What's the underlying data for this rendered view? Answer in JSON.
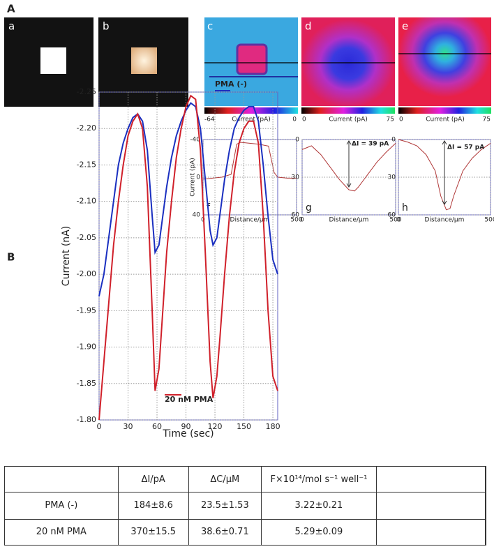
{
  "panels": {
    "a": "A",
    "b": "B"
  },
  "images": [
    {
      "label": "a"
    },
    {
      "label": "b"
    },
    {
      "label": "c"
    },
    {
      "label": "d"
    },
    {
      "label": "e"
    }
  ],
  "colorbars": [
    {
      "min": "-64",
      "title": "Current (pA)",
      "max": "0"
    },
    {
      "min": "0",
      "title": "Current (pA)",
      "max": "75"
    },
    {
      "min": "0",
      "title": "Current (pA)",
      "max": "75"
    }
  ],
  "chart_data": [
    {
      "type": "line",
      "label": "f",
      "x_label": "Distance/μm",
      "y_label": "Current (pA)",
      "xlim": [
        0,
        500
      ],
      "xticks": [
        0,
        500
      ],
      "ylim": [
        40,
        -40
      ],
      "yticks": [
        -40,
        0,
        40
      ],
      "grid": true,
      "x": [
        0,
        50,
        100,
        150,
        180,
        200,
        250,
        300,
        350,
        380,
        400,
        450,
        500
      ],
      "series": [
        {
          "color": "#b03838",
          "values": [
            2,
            1,
            0,
            -3,
            -35,
            -37,
            -36,
            -35,
            -33,
            -5,
            0,
            1,
            1
          ]
        }
      ]
    },
    {
      "type": "line",
      "label": "g",
      "x_label": "Distance/μm",
      "annotation": "ΔI = 39 pA",
      "xlim": [
        0,
        500
      ],
      "xticks": [
        0,
        500
      ],
      "ylim": [
        60,
        0
      ],
      "yticks": [
        0,
        30,
        60
      ],
      "grid": true,
      "x": [
        0,
        50,
        100,
        150,
        200,
        250,
        280,
        300,
        350,
        400,
        450,
        500
      ],
      "series": [
        {
          "color": "#b03838",
          "values": [
            8,
            5,
            12,
            22,
            32,
            40,
            41,
            38,
            28,
            18,
            10,
            3
          ]
        }
      ]
    },
    {
      "type": "line",
      "label": "h",
      "x_label": "Distance/μm",
      "annotation": "ΔI = 57 pA",
      "xlim": [
        0,
        500
      ],
      "xticks": [
        0,
        500
      ],
      "ylim": [
        60,
        0
      ],
      "yticks": [
        0,
        30,
        60
      ],
      "grid": true,
      "x": [
        0,
        50,
        100,
        150,
        200,
        230,
        260,
        280,
        300,
        350,
        400,
        450,
        500
      ],
      "series": [
        {
          "color": "#b03838",
          "values": [
            0,
            2,
            5,
            12,
            25,
            45,
            56,
            55,
            45,
            25,
            15,
            8,
            3
          ]
        }
      ]
    },
    {
      "type": "line",
      "x_label": "Time (sec)",
      "y_label": "Current (nA)",
      "xlim": [
        0,
        185
      ],
      "xticks": [
        0,
        30,
        60,
        90,
        120,
        150,
        180
      ],
      "ylim": [
        -1.8,
        -2.25
      ],
      "yticks": [
        -2.25,
        {
          "value": -2.2,
          "label": "-2.20"
        },
        -2.15,
        {
          "value": -2.1,
          "label": "-2.10"
        },
        -2.05,
        {
          "value": -2.0,
          "label": "-2.00"
        },
        -1.95,
        {
          "value": -1.9,
          "label": "-1.90"
        },
        -1.85,
        {
          "value": -1.8,
          "label": "-1.80"
        }
      ],
      "grid": true,
      "x": [
        0,
        5,
        10,
        15,
        20,
        25,
        30,
        35,
        40,
        45,
        50,
        55,
        58,
        62,
        65,
        70,
        75,
        80,
        85,
        90,
        95,
        100,
        105,
        110,
        115,
        118,
        122,
        125,
        130,
        135,
        140,
        145,
        150,
        155,
        160,
        165,
        170,
        175,
        180,
        185
      ],
      "series": [
        {
          "name": "PMA (-)",
          "color": "#1a2fc0",
          "values": [
            -1.97,
            -2.0,
            -2.05,
            -2.1,
            -2.15,
            -2.18,
            -2.2,
            -2.215,
            -2.22,
            -2.21,
            -2.17,
            -2.08,
            -2.03,
            -2.04,
            -2.07,
            -2.12,
            -2.16,
            -2.19,
            -2.21,
            -2.225,
            -2.235,
            -2.23,
            -2.2,
            -2.13,
            -2.06,
            -2.04,
            -2.05,
            -2.08,
            -2.13,
            -2.17,
            -2.2,
            -2.215,
            -2.225,
            -2.23,
            -2.23,
            -2.21,
            -2.15,
            -2.08,
            -2.02,
            -2.0
          ]
        },
        {
          "name": "20 nM PMA",
          "color": "#d0202a",
          "values": [
            -1.8,
            -1.88,
            -1.96,
            -2.04,
            -2.1,
            -2.15,
            -2.19,
            -2.21,
            -2.22,
            -2.2,
            -2.12,
            -1.95,
            -1.84,
            -1.87,
            -1.93,
            -2.03,
            -2.1,
            -2.16,
            -2.2,
            -2.23,
            -2.245,
            -2.24,
            -2.17,
            -2.03,
            -1.88,
            -1.83,
            -1.86,
            -1.91,
            -2.0,
            -2.08,
            -2.14,
            -2.18,
            -2.2,
            -2.21,
            -2.21,
            -2.18,
            -2.08,
            -1.95,
            -1.86,
            -1.84
          ]
        }
      ]
    }
  ],
  "table": {
    "header": [
      "ΔI/pA",
      "ΔC/μM",
      "F×10¹⁴/mol s⁻¹ well⁻¹"
    ],
    "rows": [
      [
        "PMA (-)",
        "184±8.6",
        "23.5±1.53",
        "3.22±0.21"
      ],
      [
        "20 nM PMA",
        "370±15.5",
        "38.6±0.71",
        "5.29±0.09"
      ]
    ]
  }
}
